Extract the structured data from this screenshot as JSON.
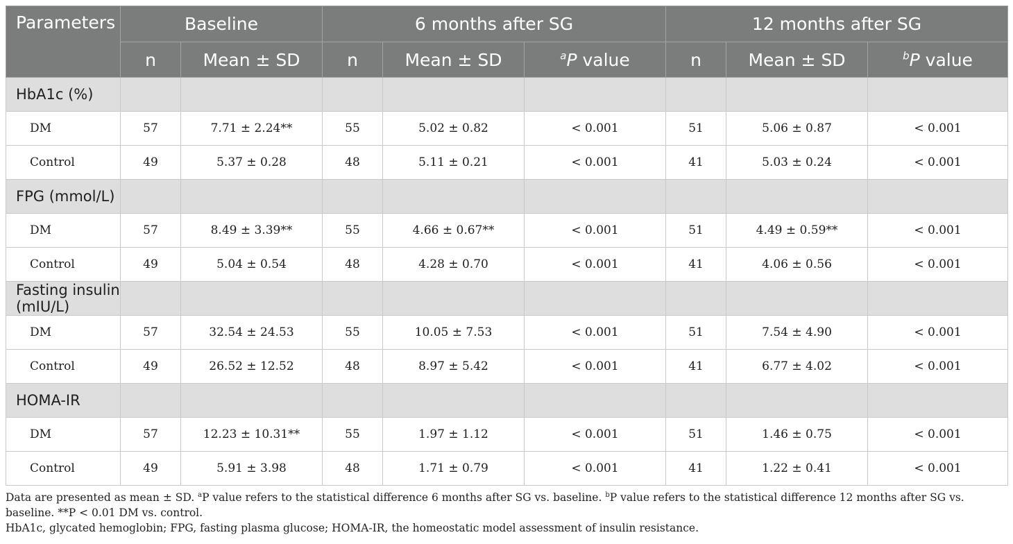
{
  "header": {
    "parameters": "Parameters",
    "baseline": "Baseline",
    "six_months": "6 months after SG",
    "twelve_months": "12 months after SG",
    "n": "n",
    "mean_sd": "Mean ± SD",
    "p_label_a": "a",
    "p_label_b": "b",
    "p_letter": "P",
    "p_value_word": "value"
  },
  "groups": [
    {
      "name": "HbA1c (%)",
      "rows": [
        {
          "label": "DM",
          "b_n": "57",
          "b_mean": "7.71 ± 2.24**",
          "s_n": "55",
          "s_mean": "5.02 ± 0.82",
          "s_p": "< 0.001",
          "t_n": "51",
          "t_mean": "5.06 ± 0.87",
          "t_p": "< 0.001"
        },
        {
          "label": "Control",
          "b_n": "49",
          "b_mean": "5.37 ± 0.28",
          "s_n": "48",
          "s_mean": "5.11 ± 0.21",
          "s_p": "< 0.001",
          "t_n": "41",
          "t_mean": "5.03 ± 0.24",
          "t_p": "< 0.001"
        }
      ]
    },
    {
      "name": "FPG (mmol/L)",
      "rows": [
        {
          "label": "DM",
          "b_n": "57",
          "b_mean": "8.49 ± 3.39**",
          "s_n": "55",
          "s_mean": "4.66 ± 0.67**",
          "s_p": "< 0.001",
          "t_n": "51",
          "t_mean": "4.49 ± 0.59**",
          "t_p": "< 0.001"
        },
        {
          "label": "Control",
          "b_n": "49",
          "b_mean": "5.04 ± 0.54",
          "s_n": "48",
          "s_mean": "4.28 ± 0.70",
          "s_p": "< 0.001",
          "t_n": "41",
          "t_mean": "4.06 ± 0.56",
          "t_p": "< 0.001"
        }
      ]
    },
    {
      "name": "Fasting insulin (mIU/L)",
      "rows": [
        {
          "label": "DM",
          "b_n": "57",
          "b_mean": "32.54 ± 24.53",
          "s_n": "55",
          "s_mean": "10.05 ± 7.53",
          "s_p": "< 0.001",
          "t_n": "51",
          "t_mean": "7.54 ± 4.90",
          "t_p": "< 0.001"
        },
        {
          "label": "Control",
          "b_n": "49",
          "b_mean": "26.52 ± 12.52",
          "s_n": "48",
          "s_mean": "8.97 ± 5.42",
          "s_p": "< 0.001",
          "t_n": "41",
          "t_mean": "6.77 ± 4.02",
          "t_p": "< 0.001"
        }
      ]
    },
    {
      "name": "HOMA-IR",
      "rows": [
        {
          "label": "DM",
          "b_n": "57",
          "b_mean": "12.23 ± 10.31**",
          "s_n": "55",
          "s_mean": "1.97 ± 1.12",
          "s_p": "< 0.001",
          "t_n": "51",
          "t_mean": "1.46 ± 0.75",
          "t_p": "< 0.001"
        },
        {
          "label": "Control",
          "b_n": "49",
          "b_mean": "5.91 ± 3.98",
          "s_n": "48",
          "s_mean": "1.71 ± 0.79",
          "s_p": "< 0.001",
          "t_n": "41",
          "t_mean": "1.22 ± 0.41",
          "t_p": "< 0.001"
        }
      ]
    }
  ],
  "footnote": {
    "line1_pre": "Data are presented as mean ± SD. ",
    "sup_a": "a",
    "line1_mid": "P value refers to the statistical difference 6 months after SG vs. baseline. ",
    "sup_b": "b",
    "line1_post": "P value refers to the statistical difference 12 months after SG vs. baseline. **P < 0.01 DM vs. control.",
    "line2": "HbA1c, glycated hemoglobin; FPG, fasting plasma glucose; HOMA-IR, the homeostatic model assessment of insulin resistance."
  }
}
